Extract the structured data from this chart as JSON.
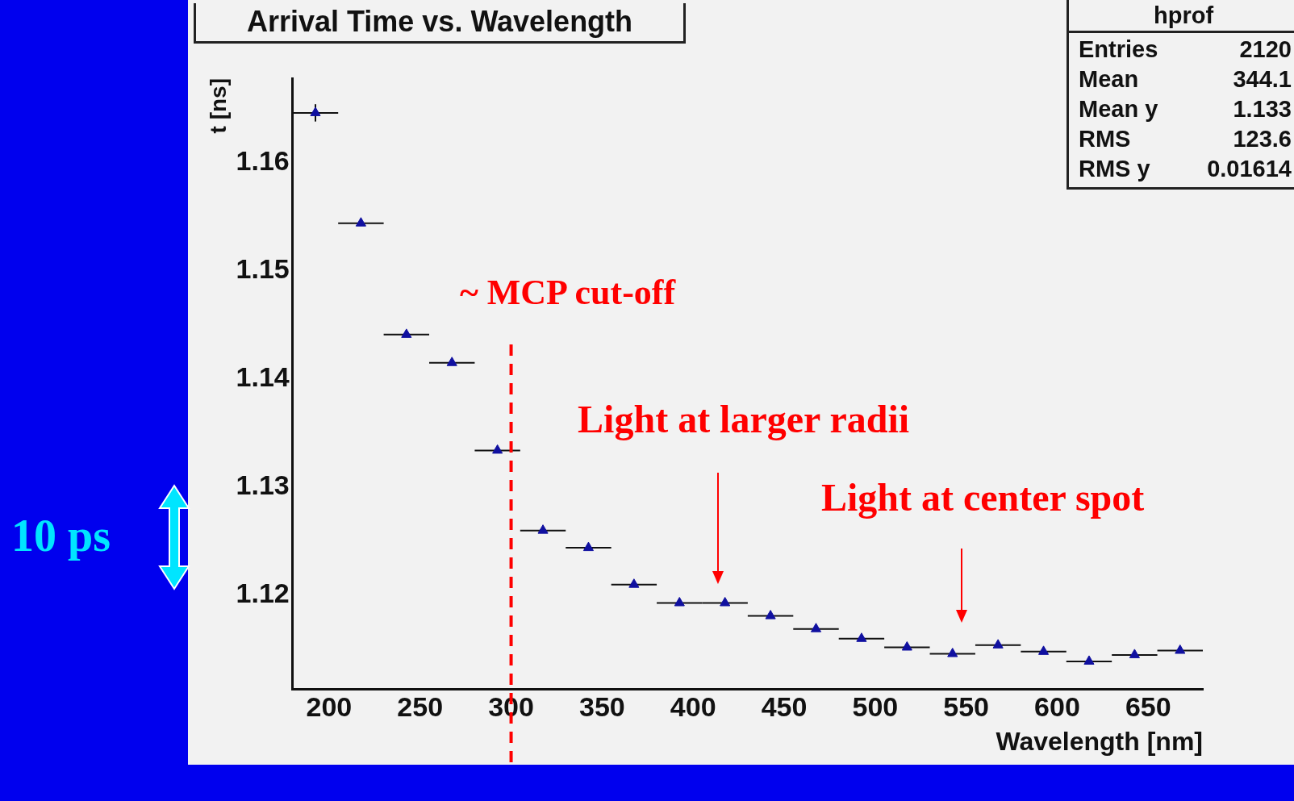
{
  "chart_data": {
    "type": "scatter",
    "title": "Arrival Time vs. Wavelength",
    "xlabel": "Wavelength [nm]",
    "ylabel": "t [ns]",
    "x": [
      192.5,
      217.5,
      242.5,
      267.5,
      292.5,
      317.5,
      342.5,
      367.5,
      392.5,
      417.5,
      442.5,
      467.5,
      492.5,
      517.5,
      542.5,
      567.5,
      592.5,
      617.5,
      642.5,
      667.5
    ],
    "series": [
      {
        "color": "#1010a0",
        "values": [
          1.1646,
          1.1544,
          1.1441,
          1.1415,
          1.1334,
          1.126,
          1.1244,
          1.121,
          1.1193,
          1.1193,
          1.1181,
          1.1169,
          1.116,
          1.1152,
          1.1146,
          1.1154,
          1.1148,
          1.1139,
          1.1145,
          1.1149
        ],
        "xerrors": [
          12.5,
          12.5,
          12.5,
          12.5,
          12.5,
          12.5,
          12.5,
          12.5,
          12.5,
          12.5,
          12.5,
          12.5,
          12.5,
          12.5,
          12.5,
          12.5,
          12.5,
          12.5,
          12.5,
          12.5
        ],
        "errors": [
          0.0008,
          null,
          null,
          null,
          null,
          null,
          null,
          null,
          null,
          null,
          null,
          null,
          null,
          null,
          null,
          null,
          null,
          null,
          null,
          null
        ]
      }
    ],
    "xlim": [
      180,
      680
    ],
    "xticks": [
      200,
      250,
      300,
      350,
      400,
      450,
      500,
      550,
      600,
      650
    ],
    "ylim": [
      1.1113,
      1.1678
    ],
    "yticks": [
      1.12,
      1.13,
      1.14,
      1.15,
      1.16
    ],
    "marker": "triangle",
    "grid": false,
    "legend": false,
    "ref_lines": [
      {
        "axis": "x",
        "value": 300,
        "label": "~ MCP cut-off",
        "color": "#ff0000",
        "line_style": "dashed"
      }
    ],
    "annotations": [
      "hprof",
      "Entries 2120",
      "Mean 344.1",
      "Mean y 1.133",
      "RMS 123.6",
      "RMS y 0.01614",
      "10 ps",
      "Light at larger radii",
      "Light at center spot"
    ]
  }
}
